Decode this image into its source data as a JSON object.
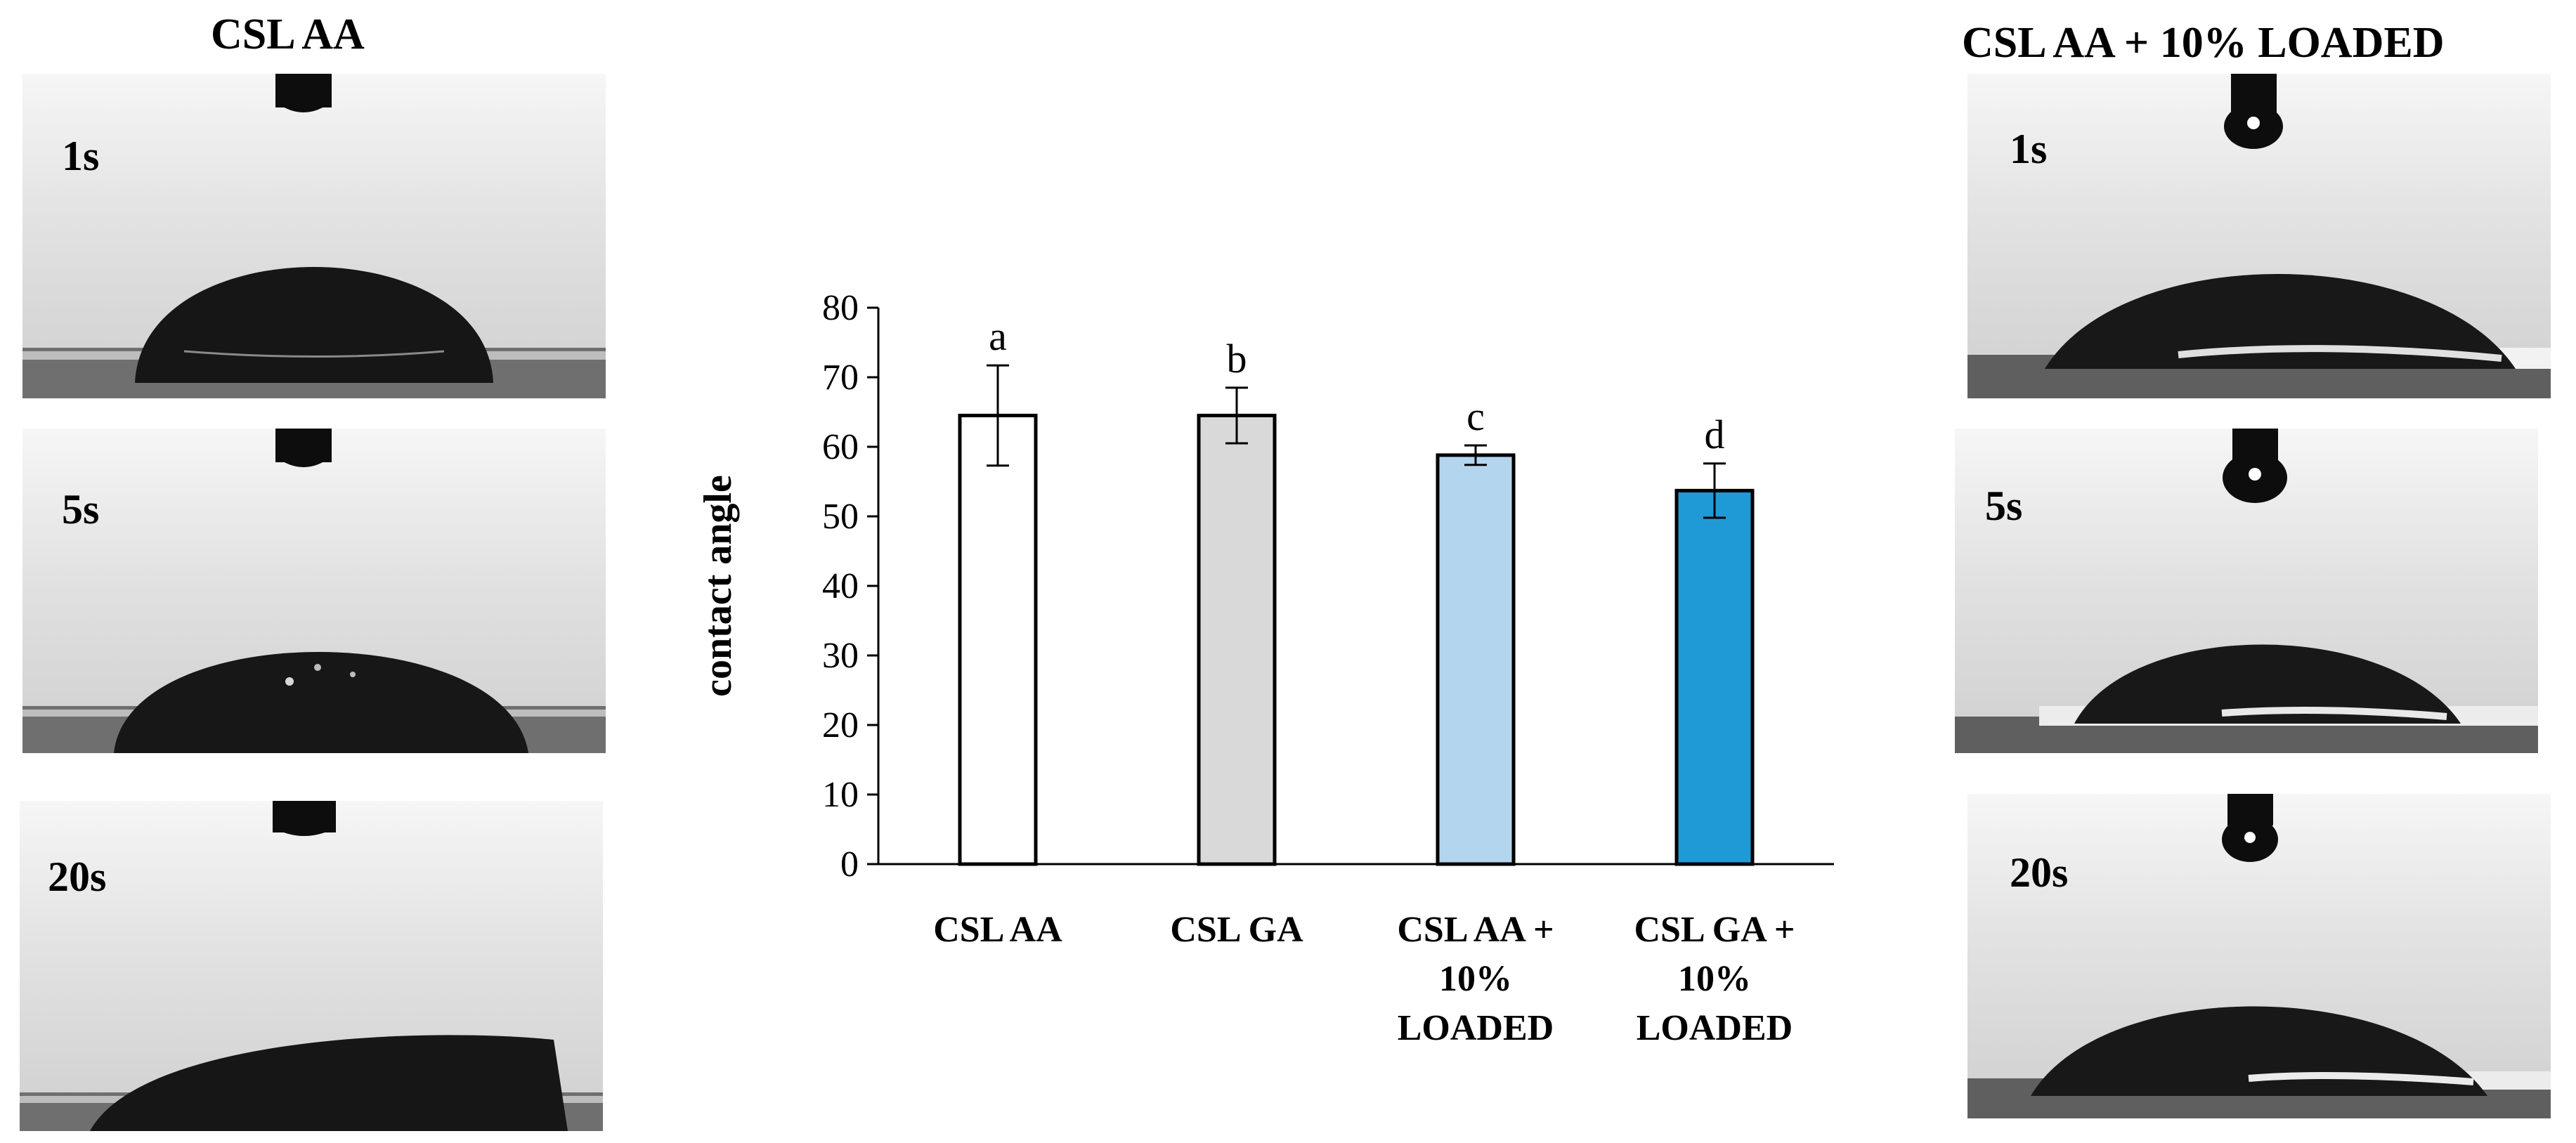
{
  "panels": {
    "left": {
      "title": "CSL AA",
      "images": [
        {
          "time": "1s"
        },
        {
          "time": "5s"
        },
        {
          "time": "20s"
        }
      ]
    },
    "right": {
      "title": "CSL AA + 10% LOADED",
      "images": [
        {
          "time": "1s"
        },
        {
          "time": "5s"
        },
        {
          "time": "20s"
        }
      ]
    }
  },
  "chart_data": {
    "type": "bar",
    "title": "",
    "xlabel": "",
    "ylabel": "contact angle",
    "ylim": [
      0,
      80
    ],
    "yticks": [
      0,
      10,
      20,
      30,
      40,
      50,
      60,
      70,
      80
    ],
    "categories": [
      [
        "CSL AA"
      ],
      [
        "CSL GA"
      ],
      [
        "CSL AA +",
        "10%",
        "LOADED"
      ],
      [
        "CSL GA +",
        "10%",
        "LOADED"
      ]
    ],
    "values": [
      64.5,
      64.5,
      58.8,
      53.7
    ],
    "errors": [
      7.2,
      4.0,
      1.4,
      3.9
    ],
    "significance_letters": [
      "a",
      "b",
      "c",
      "d"
    ],
    "bar_colors": [
      "#ffffff",
      "#d9d9d9",
      "#b4d5ee",
      "#1f9ad6"
    ],
    "grid": false
  }
}
